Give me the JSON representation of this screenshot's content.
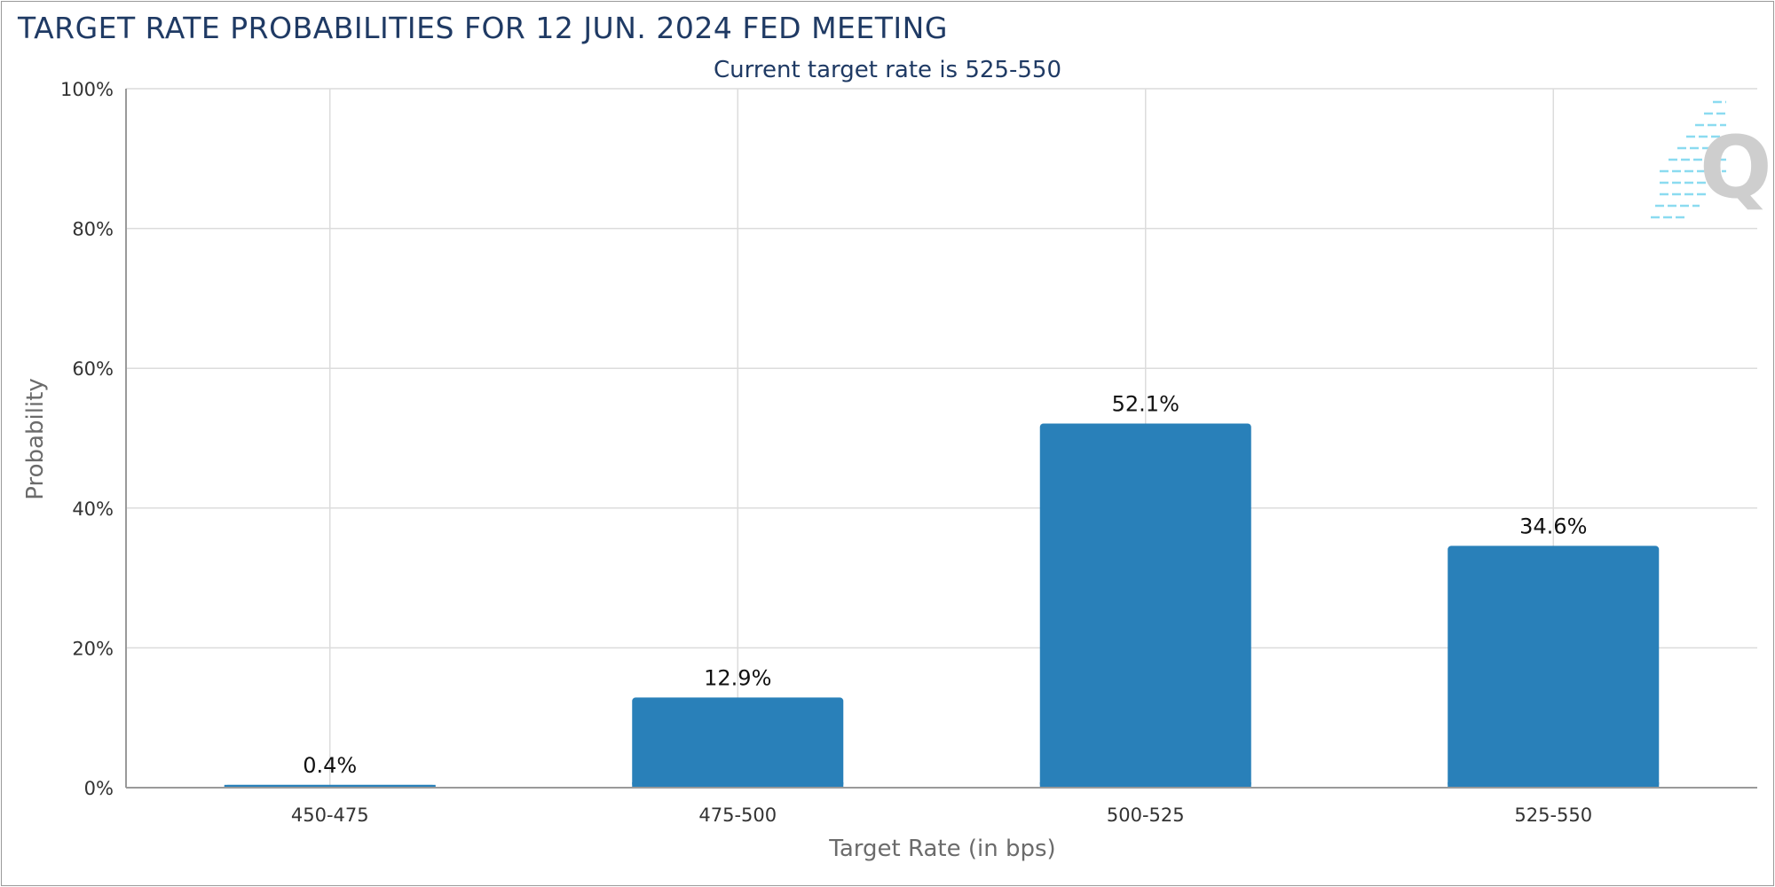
{
  "chart_data": {
    "type": "bar",
    "title": "TARGET RATE PROBABILITIES FOR 12 JUN. 2024 FED MEETING",
    "subtitle": "Current target rate is 525-550",
    "xlabel": "Target Rate (in bps)",
    "ylabel": "Probability",
    "categories": [
      "450-475",
      "475-500",
      "500-525",
      "525-550"
    ],
    "values": [
      0.4,
      12.9,
      52.1,
      34.6
    ],
    "data_labels": [
      "0.4%",
      "12.9%",
      "52.1%",
      "34.6%"
    ],
    "ylim": [
      0,
      100
    ],
    "yticks": [
      0,
      20,
      40,
      60,
      80,
      100
    ],
    "ytick_labels": [
      "0%",
      "20%",
      "40%",
      "60%",
      "80%",
      "100%"
    ],
    "grid": true,
    "bar_color": "#2980b9",
    "title_color": "#1f3a64"
  },
  "watermark": {
    "icon": "quikstrike-q-logo-icon",
    "letter": "Q"
  }
}
